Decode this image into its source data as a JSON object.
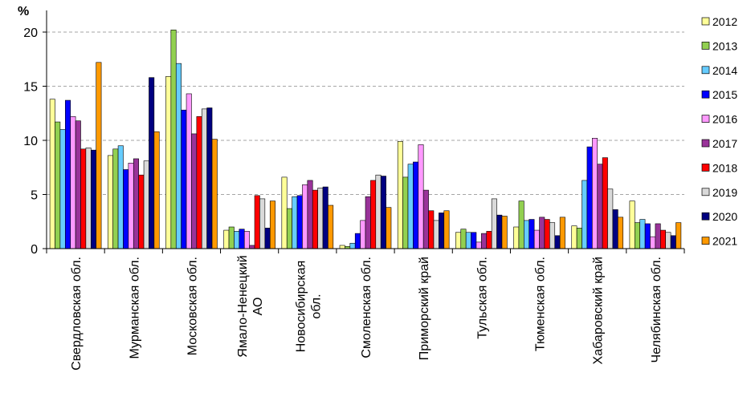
{
  "chart_data": {
    "type": "bar",
    "ylabel": "%",
    "ylim": [
      0,
      22
    ],
    "yticks": [
      0,
      5,
      10,
      15,
      20
    ],
    "grid": true,
    "legend_position": "right",
    "categories": [
      "Свердловская обл.",
      "Мурманская обл.",
      "Московская обл.",
      "Ямало-Ненецкий АО",
      "Новосибирская обл.",
      "Смоленская обл.",
      "Приморский край",
      "Тульская обл.",
      "Тюменская обл.",
      "Хабаровский край",
      "Челябинская обл."
    ],
    "category_label_lines": [
      [
        "Свердловская обл."
      ],
      [
        "Мурманская обл."
      ],
      [
        "Московская обл."
      ],
      [
        "Ямало-Ненецкий",
        "АО"
      ],
      [
        "Новосибирская",
        "обл."
      ],
      [
        "Смоленская обл."
      ],
      [
        "Приморский край"
      ],
      [
        "Тульская обл."
      ],
      [
        "Тюменская обл."
      ],
      [
        "Хабаровский край"
      ],
      [
        "Челябинская обл."
      ]
    ],
    "series": [
      {
        "name": "2012",
        "color": "#FFFF99",
        "values": [
          13.8,
          8.6,
          15.9,
          1.7,
          6.6,
          0.3,
          9.9,
          1.5,
          2.0,
          2.1,
          4.4
        ]
      },
      {
        "name": "2013",
        "color": "#92D050",
        "values": [
          11.7,
          9.2,
          20.2,
          2.0,
          3.7,
          0.2,
          6.6,
          1.8,
          4.4,
          1.9,
          2.4
        ]
      },
      {
        "name": "2014",
        "color": "#66CCFF",
        "values": [
          11.0,
          9.5,
          17.1,
          1.6,
          4.8,
          0.5,
          7.8,
          1.5,
          2.6,
          6.3,
          2.7
        ]
      },
      {
        "name": "2015",
        "color": "#0000FF",
        "values": [
          13.7,
          7.3,
          12.8,
          1.8,
          4.9,
          1.4,
          8.0,
          1.5,
          2.7,
          9.4,
          2.3
        ]
      },
      {
        "name": "2016",
        "color": "#FF99FF",
        "values": [
          12.2,
          7.9,
          14.3,
          1.6,
          5.9,
          2.6,
          9.6,
          0.6,
          1.7,
          10.2,
          1.1
        ]
      },
      {
        "name": "2017",
        "color": "#993399",
        "values": [
          11.8,
          8.3,
          10.6,
          0.3,
          6.3,
          4.8,
          5.4,
          1.4,
          2.9,
          7.8,
          2.3
        ]
      },
      {
        "name": "2018",
        "color": "#FF0000",
        "values": [
          9.2,
          6.8,
          12.2,
          4.9,
          5.4,
          6.3,
          3.5,
          1.6,
          2.7,
          8.4,
          1.7
        ]
      },
      {
        "name": "2019",
        "color": "#D9D9D9",
        "values": [
          9.3,
          8.1,
          12.9,
          4.6,
          5.6,
          6.8,
          2.6,
          4.6,
          2.4,
          5.5,
          1.5
        ]
      },
      {
        "name": "2020",
        "color": "#000080",
        "values": [
          9.1,
          15.8,
          13.0,
          1.9,
          5.7,
          6.7,
          3.3,
          3.1,
          1.2,
          3.6,
          1.2
        ]
      },
      {
        "name": "2021",
        "color": "#FF9900",
        "values": [
          17.2,
          10.8,
          10.1,
          4.4,
          4.0,
          3.8,
          3.5,
          3.0,
          2.9,
          2.9,
          2.4
        ]
      }
    ]
  }
}
